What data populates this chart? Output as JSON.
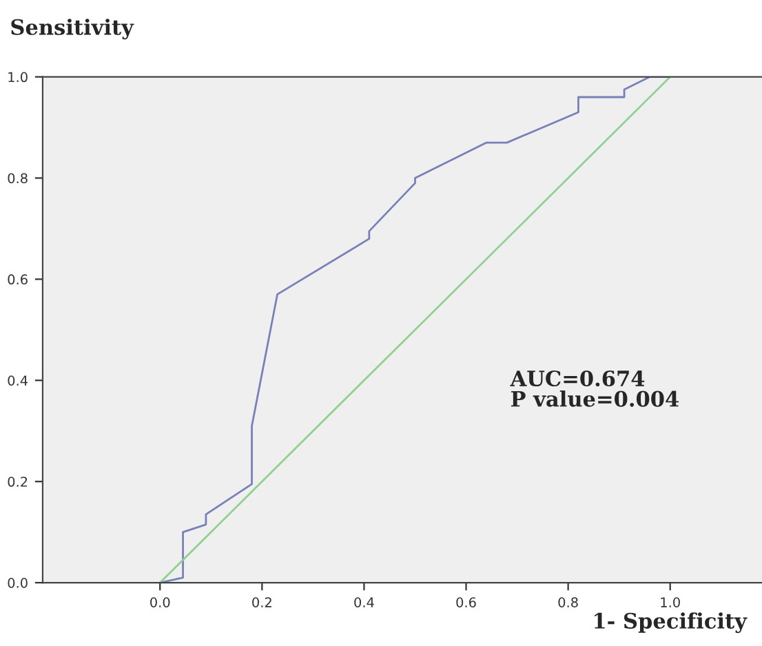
{
  "chart_data": {
    "type": "line",
    "ylabel": "Sensitivity",
    "xlabel": "1- Specificity",
    "xlim": [
      -0.23,
      1.18
    ],
    "ylim": [
      0,
      1
    ],
    "xticks": [
      {
        "value": 0,
        "label": "0.0"
      },
      {
        "value": 0.2,
        "label": "0.2"
      },
      {
        "value": 0.4,
        "label": "0.4"
      },
      {
        "value": 0.6,
        "label": "0.6"
      },
      {
        "value": 0.8,
        "label": "0.8"
      },
      {
        "value": 1,
        "label": "1.0"
      }
    ],
    "yticks": [
      {
        "value": 0,
        "label": "0.0"
      },
      {
        "value": 0.2,
        "label": "0.2"
      },
      {
        "value": 0.4,
        "label": "0.4"
      },
      {
        "value": 0.6,
        "label": "0.6"
      },
      {
        "value": 0.8,
        "label": "0.8"
      },
      {
        "value": 1,
        "label": "1.0"
      }
    ],
    "grid": false,
    "legend": false,
    "series": [
      {
        "color": "#7880b8",
        "x": [
          0,
          0.045,
          0.045,
          0.09,
          0.09,
          0.18,
          0.18,
          0.23,
          0.41,
          0.41,
          0.5,
          0.5,
          0.64,
          0.68,
          0.82,
          0.82,
          0.91,
          0.91,
          0.96,
          1.0
        ],
        "values": [
          0,
          0.01,
          0.1,
          0.115,
          0.135,
          0.195,
          0.31,
          0.57,
          0.68,
          0.695,
          0.79,
          0.8,
          0.87,
          0.87,
          0.93,
          0.96,
          0.96,
          0.975,
          1.0,
          1.0
        ]
      },
      {
        "color": "#90d090",
        "x": [
          0,
          1
        ],
        "values": [
          0,
          1
        ]
      }
    ],
    "annotations": [
      {
        "text": "AUC=0.674\nP value=0.004"
      }
    ]
  }
}
